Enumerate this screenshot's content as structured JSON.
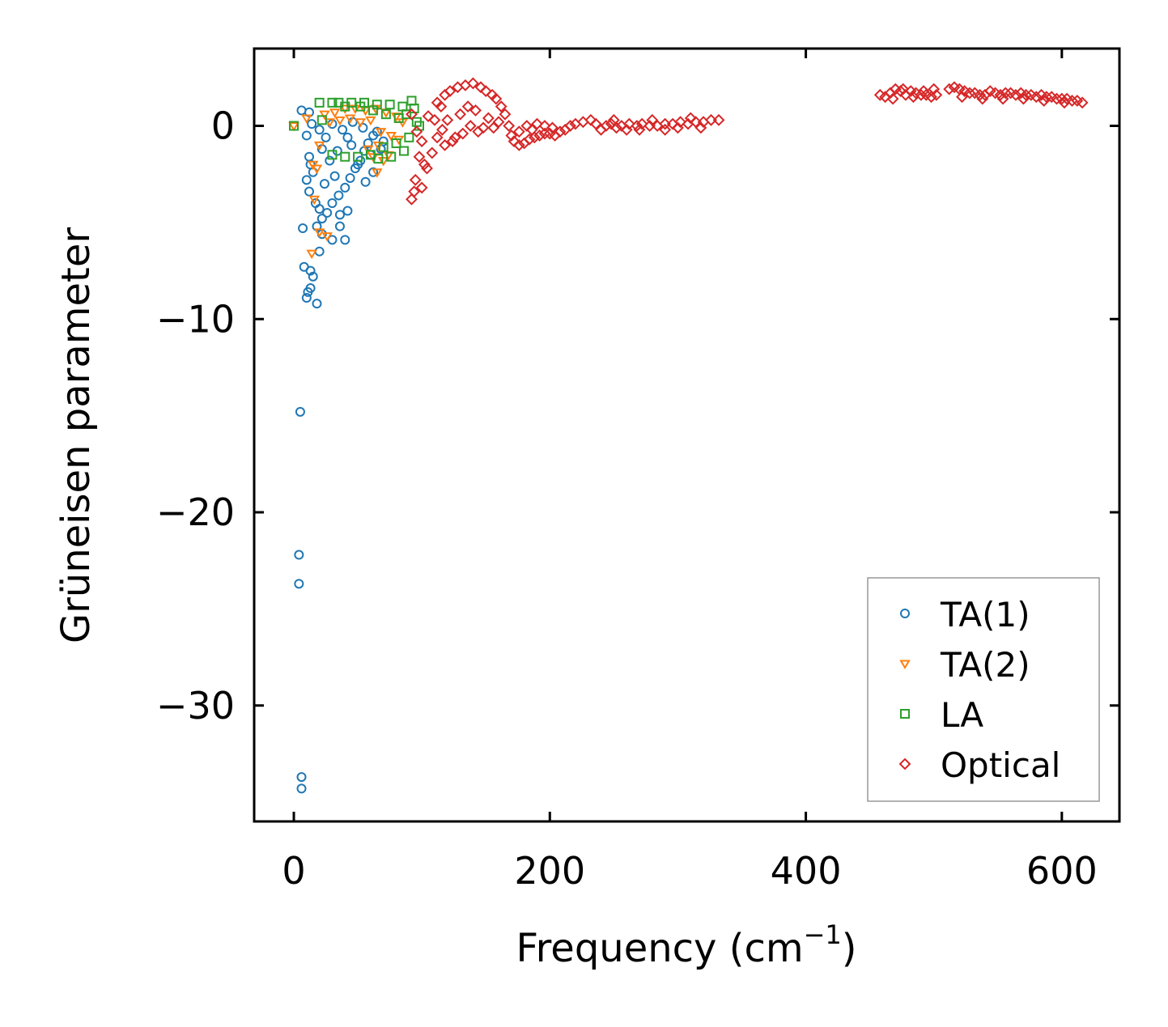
{
  "colors": {
    "ta1": "#1f77b4",
    "ta2": "#ff7f0e",
    "la": "#2ca02c",
    "optical": "#d62728",
    "axis": "#000000",
    "legend_border": "#999999"
  },
  "chart_data": {
    "type": "scatter",
    "title": "",
    "xlabel": "Frequency (cm",
    "xlabel_sup": "−1",
    "xlabel_tail": ")",
    "ylabel": "Grüneisen parameter",
    "xlim": [
      -31,
      645
    ],
    "ylim": [
      -36,
      4
    ],
    "xticks": [
      0,
      200,
      400,
      600
    ],
    "xtick_labels": [
      "0",
      "200",
      "400",
      "600"
    ],
    "yticks": [
      0,
      -10,
      -20,
      -30
    ],
    "ytick_labels": [
      "0",
      "−10",
      "−20",
      "−30"
    ],
    "grid": false,
    "legend_position": "lower-right",
    "series": [
      {
        "name": "TA(1)",
        "marker": "circle",
        "color": "#1f77b4",
        "points": [
          [
            6,
            0.8
          ],
          [
            12,
            0.7
          ],
          [
            14,
            0.1
          ],
          [
            10,
            -0.5
          ],
          [
            12,
            -1.6
          ],
          [
            13,
            -2.0
          ],
          [
            15,
            -2.4
          ],
          [
            10,
            -2.8
          ],
          [
            12,
            -3.4
          ],
          [
            17,
            -4.0
          ],
          [
            20,
            -4.3
          ],
          [
            22,
            -4.8
          ],
          [
            18,
            -5.2
          ],
          [
            22,
            -5.6
          ],
          [
            20,
            -6.5
          ],
          [
            8,
            -7.3
          ],
          [
            13,
            -7.5
          ],
          [
            15,
            -7.8
          ],
          [
            13,
            -8.4
          ],
          [
            11,
            -8.6
          ],
          [
            10,
            -8.9
          ],
          [
            18,
            -9.2
          ],
          [
            7,
            -5.3
          ],
          [
            30,
            -5.9
          ],
          [
            40,
            -5.9
          ],
          [
            36,
            -5.2
          ],
          [
            26,
            -4.5
          ],
          [
            30,
            -4.0
          ],
          [
            35,
            -3.6
          ],
          [
            40,
            -3.2
          ],
          [
            44,
            -2.7
          ],
          [
            48,
            -2.2
          ],
          [
            52,
            -1.8
          ],
          [
            55,
            -1.3
          ],
          [
            58,
            -0.9
          ],
          [
            62,
            -0.5
          ],
          [
            65,
            -0.3
          ],
          [
            68,
            -1.2
          ],
          [
            70,
            -0.8
          ],
          [
            60,
            -1.5
          ],
          [
            50,
            -2.0
          ],
          [
            45,
            -1.0
          ],
          [
            38,
            -0.2
          ],
          [
            30,
            0.1
          ],
          [
            25,
            -0.6
          ],
          [
            28,
            -1.8
          ],
          [
            32,
            -2.6
          ],
          [
            24,
            -3.0
          ],
          [
            34,
            -1.3
          ],
          [
            42,
            -0.6
          ],
          [
            46,
            0.2
          ],
          [
            54,
            -0.1
          ],
          [
            62,
            -2.4
          ],
          [
            56,
            -2.9
          ],
          [
            20,
            -0.2
          ],
          [
            22,
            -1.2
          ],
          [
            36,
            -4.6
          ],
          [
            42,
            -4.4
          ],
          [
            5,
            -14.8
          ],
          [
            4,
            -22.2
          ],
          [
            4,
            -23.7
          ],
          [
            6,
            -33.7
          ],
          [
            6,
            -34.3
          ]
        ]
      },
      {
        "name": "TA(2)",
        "marker": "triangle-down",
        "color": "#ff7f0e",
        "points": [
          [
            0,
            0.0
          ],
          [
            10,
            0.4
          ],
          [
            18,
            -2.2
          ],
          [
            15,
            -2.0
          ],
          [
            16,
            -3.8
          ],
          [
            14,
            -6.6
          ],
          [
            20,
            -1.0
          ],
          [
            24,
            0.6
          ],
          [
            32,
            0.7
          ],
          [
            40,
            0.9
          ],
          [
            48,
            0.9
          ],
          [
            56,
            0.8
          ],
          [
            64,
            0.9
          ],
          [
            72,
            0.7
          ],
          [
            80,
            0.5
          ],
          [
            85,
            0.2
          ],
          [
            28,
            0.2
          ],
          [
            36,
            0.3
          ],
          [
            44,
            0.4
          ],
          [
            52,
            0.2
          ],
          [
            60,
            0.3
          ],
          [
            68,
            -0.3
          ],
          [
            76,
            -0.5
          ],
          [
            82,
            -0.7
          ],
          [
            66,
            -1.0
          ],
          [
            58,
            -1.2
          ],
          [
            74,
            -1.5
          ],
          [
            70,
            -1.8
          ],
          [
            65,
            -2.4
          ],
          [
            62,
            -1.6
          ],
          [
            20,
            -5.5
          ],
          [
            26,
            -5.7
          ]
        ]
      },
      {
        "name": "LA",
        "marker": "square",
        "color": "#2ca02c",
        "points": [
          [
            0,
            0.0
          ],
          [
            20,
            1.2
          ],
          [
            30,
            1.2
          ],
          [
            35,
            1.2
          ],
          [
            45,
            1.2
          ],
          [
            55,
            1.2
          ],
          [
            65,
            1.1
          ],
          [
            75,
            1.1
          ],
          [
            85,
            1.0
          ],
          [
            92,
            1.3
          ],
          [
            96,
            0.2
          ],
          [
            98,
            0.0
          ],
          [
            90,
            -0.6
          ],
          [
            80,
            -0.9
          ],
          [
            70,
            -1.1
          ],
          [
            60,
            -1.5
          ],
          [
            50,
            -1.6
          ],
          [
            40,
            -1.6
          ],
          [
            30,
            -1.5
          ],
          [
            22,
            0.3
          ],
          [
            40,
            1.0
          ],
          [
            52,
            1.0
          ],
          [
            62,
            0.8
          ],
          [
            72,
            0.6
          ],
          [
            82,
            0.4
          ],
          [
            88,
            0.6
          ],
          [
            94,
            0.9
          ],
          [
            86,
            -1.3
          ],
          [
            76,
            -1.6
          ],
          [
            66,
            -1.7
          ]
        ]
      },
      {
        "name": "Optical",
        "marker": "diamond",
        "color": "#d62728",
        "points": [
          [
            92,
            0.6
          ],
          [
            96,
            -0.3
          ],
          [
            100,
            -0.8
          ],
          [
            98,
            -1.6
          ],
          [
            102,
            -2.0
          ],
          [
            95,
            -2.8
          ],
          [
            100,
            -3.2
          ],
          [
            94,
            -3.4
          ],
          [
            92,
            -3.8
          ],
          [
            104,
            -2.2
          ],
          [
            108,
            -1.4
          ],
          [
            112,
            -0.6
          ],
          [
            110,
            0.3
          ],
          [
            115,
            1.0
          ],
          [
            105,
            0.5
          ],
          [
            112,
            1.2
          ],
          [
            118,
            1.6
          ],
          [
            122,
            1.8
          ],
          [
            128,
            2.0
          ],
          [
            134,
            2.1
          ],
          [
            140,
            2.2
          ],
          [
            146,
            2.0
          ],
          [
            150,
            1.8
          ],
          [
            155,
            1.6
          ],
          [
            158,
            1.4
          ],
          [
            162,
            1.0
          ],
          [
            165,
            0.6
          ],
          [
            160,
            0.2
          ],
          [
            156,
            -0.1
          ],
          [
            152,
            0.4
          ],
          [
            148,
            -0.1
          ],
          [
            144,
            -0.3
          ],
          [
            138,
            0.0
          ],
          [
            132,
            -0.4
          ],
          [
            126,
            -0.6
          ],
          [
            130,
            0.6
          ],
          [
            136,
            1.0
          ],
          [
            142,
            0.8
          ],
          [
            120,
            0.3
          ],
          [
            116,
            -0.2
          ],
          [
            124,
            -0.8
          ],
          [
            118,
            -1.0
          ],
          [
            168,
            0.0
          ],
          [
            170,
            -0.5
          ],
          [
            172,
            -0.8
          ],
          [
            176,
            -1.0
          ],
          [
            180,
            -0.9
          ],
          [
            184,
            -0.7
          ],
          [
            188,
            -0.6
          ],
          [
            192,
            -0.5
          ],
          [
            196,
            -0.4
          ],
          [
            200,
            -0.4
          ],
          [
            204,
            -0.5
          ],
          [
            176,
            -0.3
          ],
          [
            182,
            0.0
          ],
          [
            186,
            -0.2
          ],
          [
            190,
            0.1
          ],
          [
            196,
            0.0
          ],
          [
            202,
            -0.1
          ],
          [
            208,
            -0.3
          ],
          [
            212,
            -0.2
          ],
          [
            216,
            0.0
          ],
          [
            220,
            0.1
          ],
          [
            226,
            0.2
          ],
          [
            232,
            0.3
          ],
          [
            236,
            0.1
          ],
          [
            240,
            -0.2
          ],
          [
            244,
            0.0
          ],
          [
            248,
            0.1
          ],
          [
            252,
            -0.1
          ],
          [
            256,
            0.0
          ],
          [
            262,
            0.1
          ],
          [
            268,
            0.0
          ],
          [
            272,
            0.1
          ],
          [
            278,
            0.0
          ],
          [
            284,
            0.0
          ],
          [
            290,
            0.1
          ],
          [
            296,
            0.1
          ],
          [
            302,
            0.2
          ],
          [
            308,
            0.1
          ],
          [
            314,
            0.2
          ],
          [
            320,
            0.2
          ],
          [
            326,
            0.3
          ],
          [
            332,
            0.3
          ],
          [
            250,
            0.3
          ],
          [
            260,
            -0.2
          ],
          [
            270,
            -0.2
          ],
          [
            280,
            0.3
          ],
          [
            290,
            -0.2
          ],
          [
            300,
            -0.1
          ],
          [
            310,
            0.4
          ],
          [
            318,
            -0.1
          ],
          [
            458,
            1.6
          ],
          [
            462,
            1.5
          ],
          [
            466,
            1.7
          ],
          [
            470,
            1.9
          ],
          [
            474,
            1.8
          ],
          [
            478,
            1.6
          ],
          [
            482,
            1.8
          ],
          [
            486,
            1.7
          ],
          [
            490,
            1.6
          ],
          [
            494,
            1.6
          ],
          [
            498,
            1.5
          ],
          [
            502,
            1.6
          ],
          [
            468,
            1.4
          ],
          [
            476,
            1.9
          ],
          [
            484,
            1.5
          ],
          [
            492,
            1.8
          ],
          [
            500,
            1.9
          ],
          [
            512,
            1.9
          ],
          [
            516,
            2.0
          ],
          [
            520,
            1.9
          ],
          [
            524,
            1.8
          ],
          [
            528,
            1.7
          ],
          [
            532,
            1.7
          ],
          [
            536,
            1.6
          ],
          [
            540,
            1.6
          ],
          [
            544,
            1.8
          ],
          [
            548,
            1.7
          ],
          [
            552,
            1.6
          ],
          [
            556,
            1.7
          ],
          [
            560,
            1.7
          ],
          [
            564,
            1.6
          ],
          [
            568,
            1.7
          ],
          [
            572,
            1.6
          ],
          [
            576,
            1.6
          ],
          [
            580,
            1.5
          ],
          [
            584,
            1.6
          ],
          [
            588,
            1.5
          ],
          [
            592,
            1.5
          ],
          [
            596,
            1.4
          ],
          [
            600,
            1.4
          ],
          [
            604,
            1.4
          ],
          [
            608,
            1.3
          ],
          [
            612,
            1.3
          ],
          [
            616,
            1.2
          ],
          [
            522,
            1.5
          ],
          [
            538,
            1.4
          ],
          [
            554,
            1.4
          ],
          [
            570,
            1.4
          ],
          [
            586,
            1.3
          ],
          [
            602,
            1.2
          ]
        ]
      }
    ]
  }
}
